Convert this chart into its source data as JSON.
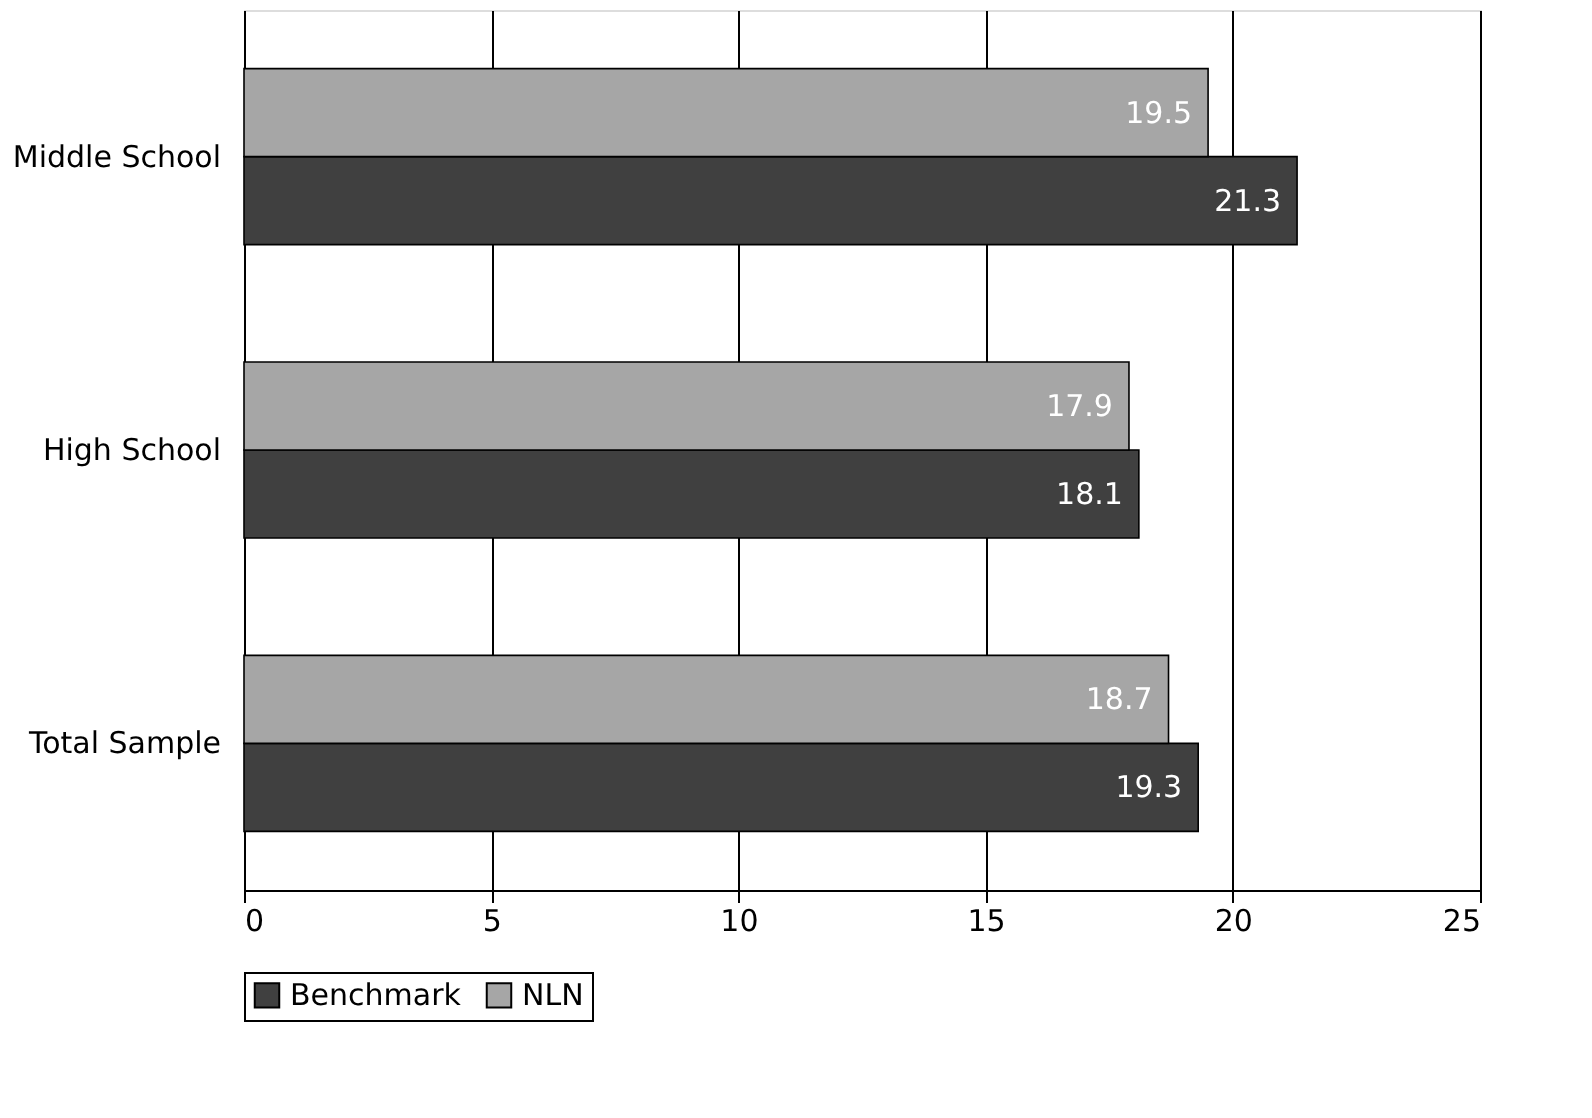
{
  "chart_data": {
    "type": "bar",
    "orientation": "horizontal",
    "categories": [
      "Middle School",
      "High School",
      "Total Sample"
    ],
    "series": [
      {
        "name": "Benchmark",
        "color": "#404040",
        "values": [
          21.3,
          18.1,
          19.3
        ]
      },
      {
        "name": "NLN",
        "color": "#a6a6a6",
        "values": [
          19.5,
          17.9,
          18.7
        ]
      }
    ],
    "xlim": [
      0,
      25
    ],
    "xticks": [
      0,
      5,
      10,
      15,
      20,
      25
    ],
    "grid": "x",
    "legend": "bottom",
    "data_labels": true
  }
}
